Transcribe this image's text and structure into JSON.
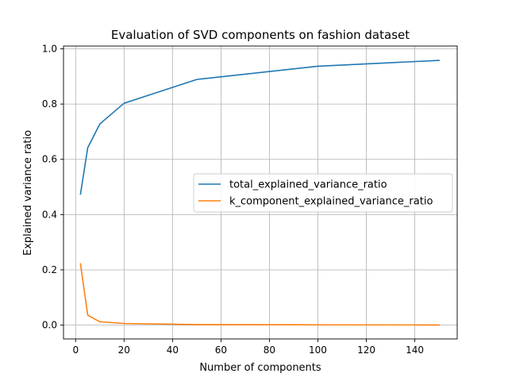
{
  "chart_data": {
    "type": "line",
    "title": "Evaluation of SVD components on fashion dataset",
    "xlabel": "Number of components",
    "ylabel": "Explained variance ratio",
    "xlim": [
      -5,
      157.5
    ],
    "ylim": [
      -0.05,
      1.01
    ],
    "xticks": [
      0,
      20,
      40,
      60,
      80,
      100,
      120,
      140
    ],
    "yticks": [
      0.0,
      0.2,
      0.4,
      0.6,
      0.8,
      1.0
    ],
    "grid": true,
    "legend_position": "center-right",
    "series": [
      {
        "name": "total_explained_variance_ratio",
        "color": "#1f77b4",
        "x": [
          2,
          5,
          10,
          20,
          50,
          100,
          150
        ],
        "y": [
          0.474,
          0.642,
          0.728,
          0.803,
          0.889,
          0.937,
          0.958
        ]
      },
      {
        "name": "k_component_explained_variance_ratio",
        "color": "#ff7f0e",
        "x": [
          2,
          5,
          10,
          20,
          50,
          100,
          150
        ],
        "y": [
          0.222,
          0.036,
          0.012,
          0.006,
          0.002,
          0.001,
          0.0005
        ]
      }
    ]
  }
}
